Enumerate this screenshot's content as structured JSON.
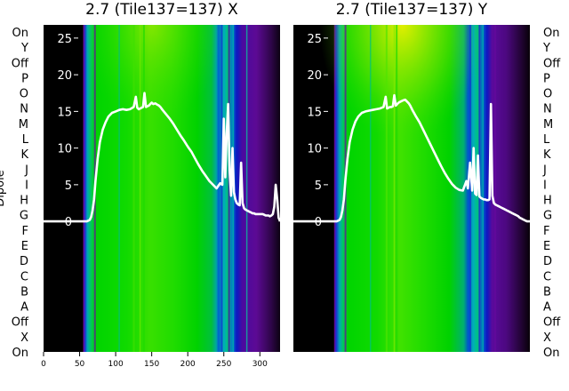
{
  "chart_data": {
    "type": "heatmap",
    "ylabel": "Dipole",
    "dipole_labels": [
      "On",
      "Y",
      "Off",
      "P",
      "O",
      "N",
      "M",
      "L",
      "K",
      "J",
      "I",
      "H",
      "G",
      "F",
      "E",
      "D",
      "C",
      "B",
      "A",
      "Off",
      "X",
      "On"
    ],
    "x_ticks": [
      0,
      50,
      100,
      150,
      200,
      250,
      300
    ],
    "xlim": [
      0,
      328
    ],
    "power_ticks": [
      0,
      5,
      10,
      15,
      20,
      25
    ],
    "power_lim": [
      -17.8,
      26.8
    ],
    "colormap": [
      "#000000",
      "#6a0aa0",
      "#0a2ad8",
      "#00c8c8",
      "#00d800",
      "#30e000",
      "#f0f000"
    ],
    "panels": [
      {
        "title": "2.7 (Tile137=137) X",
        "overlay_series": {
          "name": "",
          "x": [
            0,
            10,
            20,
            30,
            40,
            50,
            55,
            60,
            62,
            64,
            66,
            68,
            70,
            72,
            75,
            78,
            82,
            86,
            90,
            95,
            100,
            105,
            110,
            115,
            120,
            125,
            128,
            130,
            132,
            134,
            136,
            138,
            140,
            142,
            144,
            146,
            148,
            150,
            152,
            155,
            158,
            160,
            162,
            165,
            170,
            175,
            180,
            185,
            190,
            195,
            200,
            205,
            210,
            215,
            220,
            225,
            230,
            235,
            240,
            242,
            245,
            248,
            250,
            252,
            254,
            256,
            258,
            260,
            262,
            264,
            266,
            268,
            270,
            272,
            274,
            276,
            278,
            280,
            282,
            284,
            286,
            288,
            290,
            292,
            294,
            296,
            298,
            300,
            302,
            304,
            306,
            308,
            310,
            312,
            314,
            316,
            318,
            320,
            322,
            324,
            326,
            328
          ],
          "y": [
            0,
            0,
            0,
            0,
            0,
            0,
            0,
            0,
            0.1,
            0.2,
            0.6,
            1.5,
            3,
            5.5,
            8.5,
            10.8,
            12.5,
            13.5,
            14.3,
            14.8,
            15,
            15.2,
            15.3,
            15.2,
            15.3,
            15.6,
            17,
            15.5,
            15.3,
            15.4,
            15.5,
            15.6,
            17.5,
            15.6,
            15.7,
            15.8,
            16,
            16.2,
            16,
            16.1,
            15.9,
            15.8,
            15.6,
            15.2,
            14.6,
            14,
            13.3,
            12.5,
            11.7,
            11,
            10.2,
            9.5,
            8.6,
            7.7,
            6.9,
            6.2,
            5.5,
            5,
            4.5,
            4.8,
            5.2,
            5,
            14,
            6,
            12,
            16,
            7,
            3.5,
            10,
            4,
            3,
            2.5,
            2.3,
            2.2,
            8,
            2.5,
            1.8,
            1.6,
            1.5,
            1.4,
            1.3,
            1.2,
            1.1,
            1.1,
            1,
            1,
            1,
            1,
            1,
            1,
            0.9,
            0.8,
            0.8,
            0.8,
            0.7,
            0.8,
            1,
            2,
            5,
            3,
            0.5,
            0
          ]
        }
      },
      {
        "title": "2.7 (Tile137=137) Y",
        "overlay_series": {
          "name": "",
          "x": [
            0,
            10,
            20,
            30,
            40,
            50,
            55,
            60,
            62,
            64,
            66,
            68,
            70,
            72,
            75,
            78,
            82,
            86,
            90,
            95,
            100,
            105,
            110,
            115,
            120,
            125,
            128,
            130,
            132,
            134,
            136,
            138,
            140,
            142,
            144,
            146,
            148,
            150,
            152,
            155,
            158,
            160,
            162,
            165,
            170,
            175,
            180,
            185,
            190,
            195,
            200,
            205,
            210,
            215,
            220,
            225,
            230,
            235,
            240,
            242,
            245,
            248,
            250,
            252,
            254,
            256,
            258,
            260,
            262,
            264,
            266,
            268,
            270,
            272,
            274,
            276,
            278,
            280,
            282,
            284,
            286,
            288,
            290,
            292,
            294,
            296,
            298,
            300,
            302,
            304,
            306,
            308,
            310,
            312,
            314,
            316,
            318,
            320,
            322,
            324,
            326,
            328
          ],
          "y": [
            0,
            0,
            0,
            0,
            0,
            0,
            0,
            0,
            0.1,
            0.2,
            0.6,
            1.5,
            3,
            5.5,
            8.5,
            10.8,
            12.5,
            13.6,
            14.3,
            14.8,
            15,
            15.1,
            15.2,
            15.3,
            15.4,
            15.6,
            17,
            15.4,
            15.5,
            15.6,
            15.6,
            15.7,
            17.2,
            15.8,
            16,
            16.2,
            16.3,
            16.4,
            16.5,
            16.6,
            16.3,
            16.1,
            15.8,
            15.2,
            14.3,
            13.5,
            12.5,
            11.5,
            10.5,
            9.5,
            8.5,
            7.5,
            6.6,
            5.8,
            5.1,
            4.6,
            4.3,
            4.2,
            5.5,
            4.5,
            8,
            4.2,
            10,
            3.8,
            3.6,
            9,
            3.4,
            3.2,
            3.1,
            3,
            3,
            2.9,
            2.9,
            3,
            16,
            3.5,
            2.5,
            2.3,
            2.2,
            2.1,
            2,
            1.9,
            1.8,
            1.7,
            1.6,
            1.5,
            1.4,
            1.3,
            1.2,
            1.1,
            1,
            0.9,
            0.8,
            0.7,
            0.5,
            0.4,
            0.3,
            0.2,
            0.1,
            0,
            0,
            0
          ]
        }
      }
    ]
  }
}
